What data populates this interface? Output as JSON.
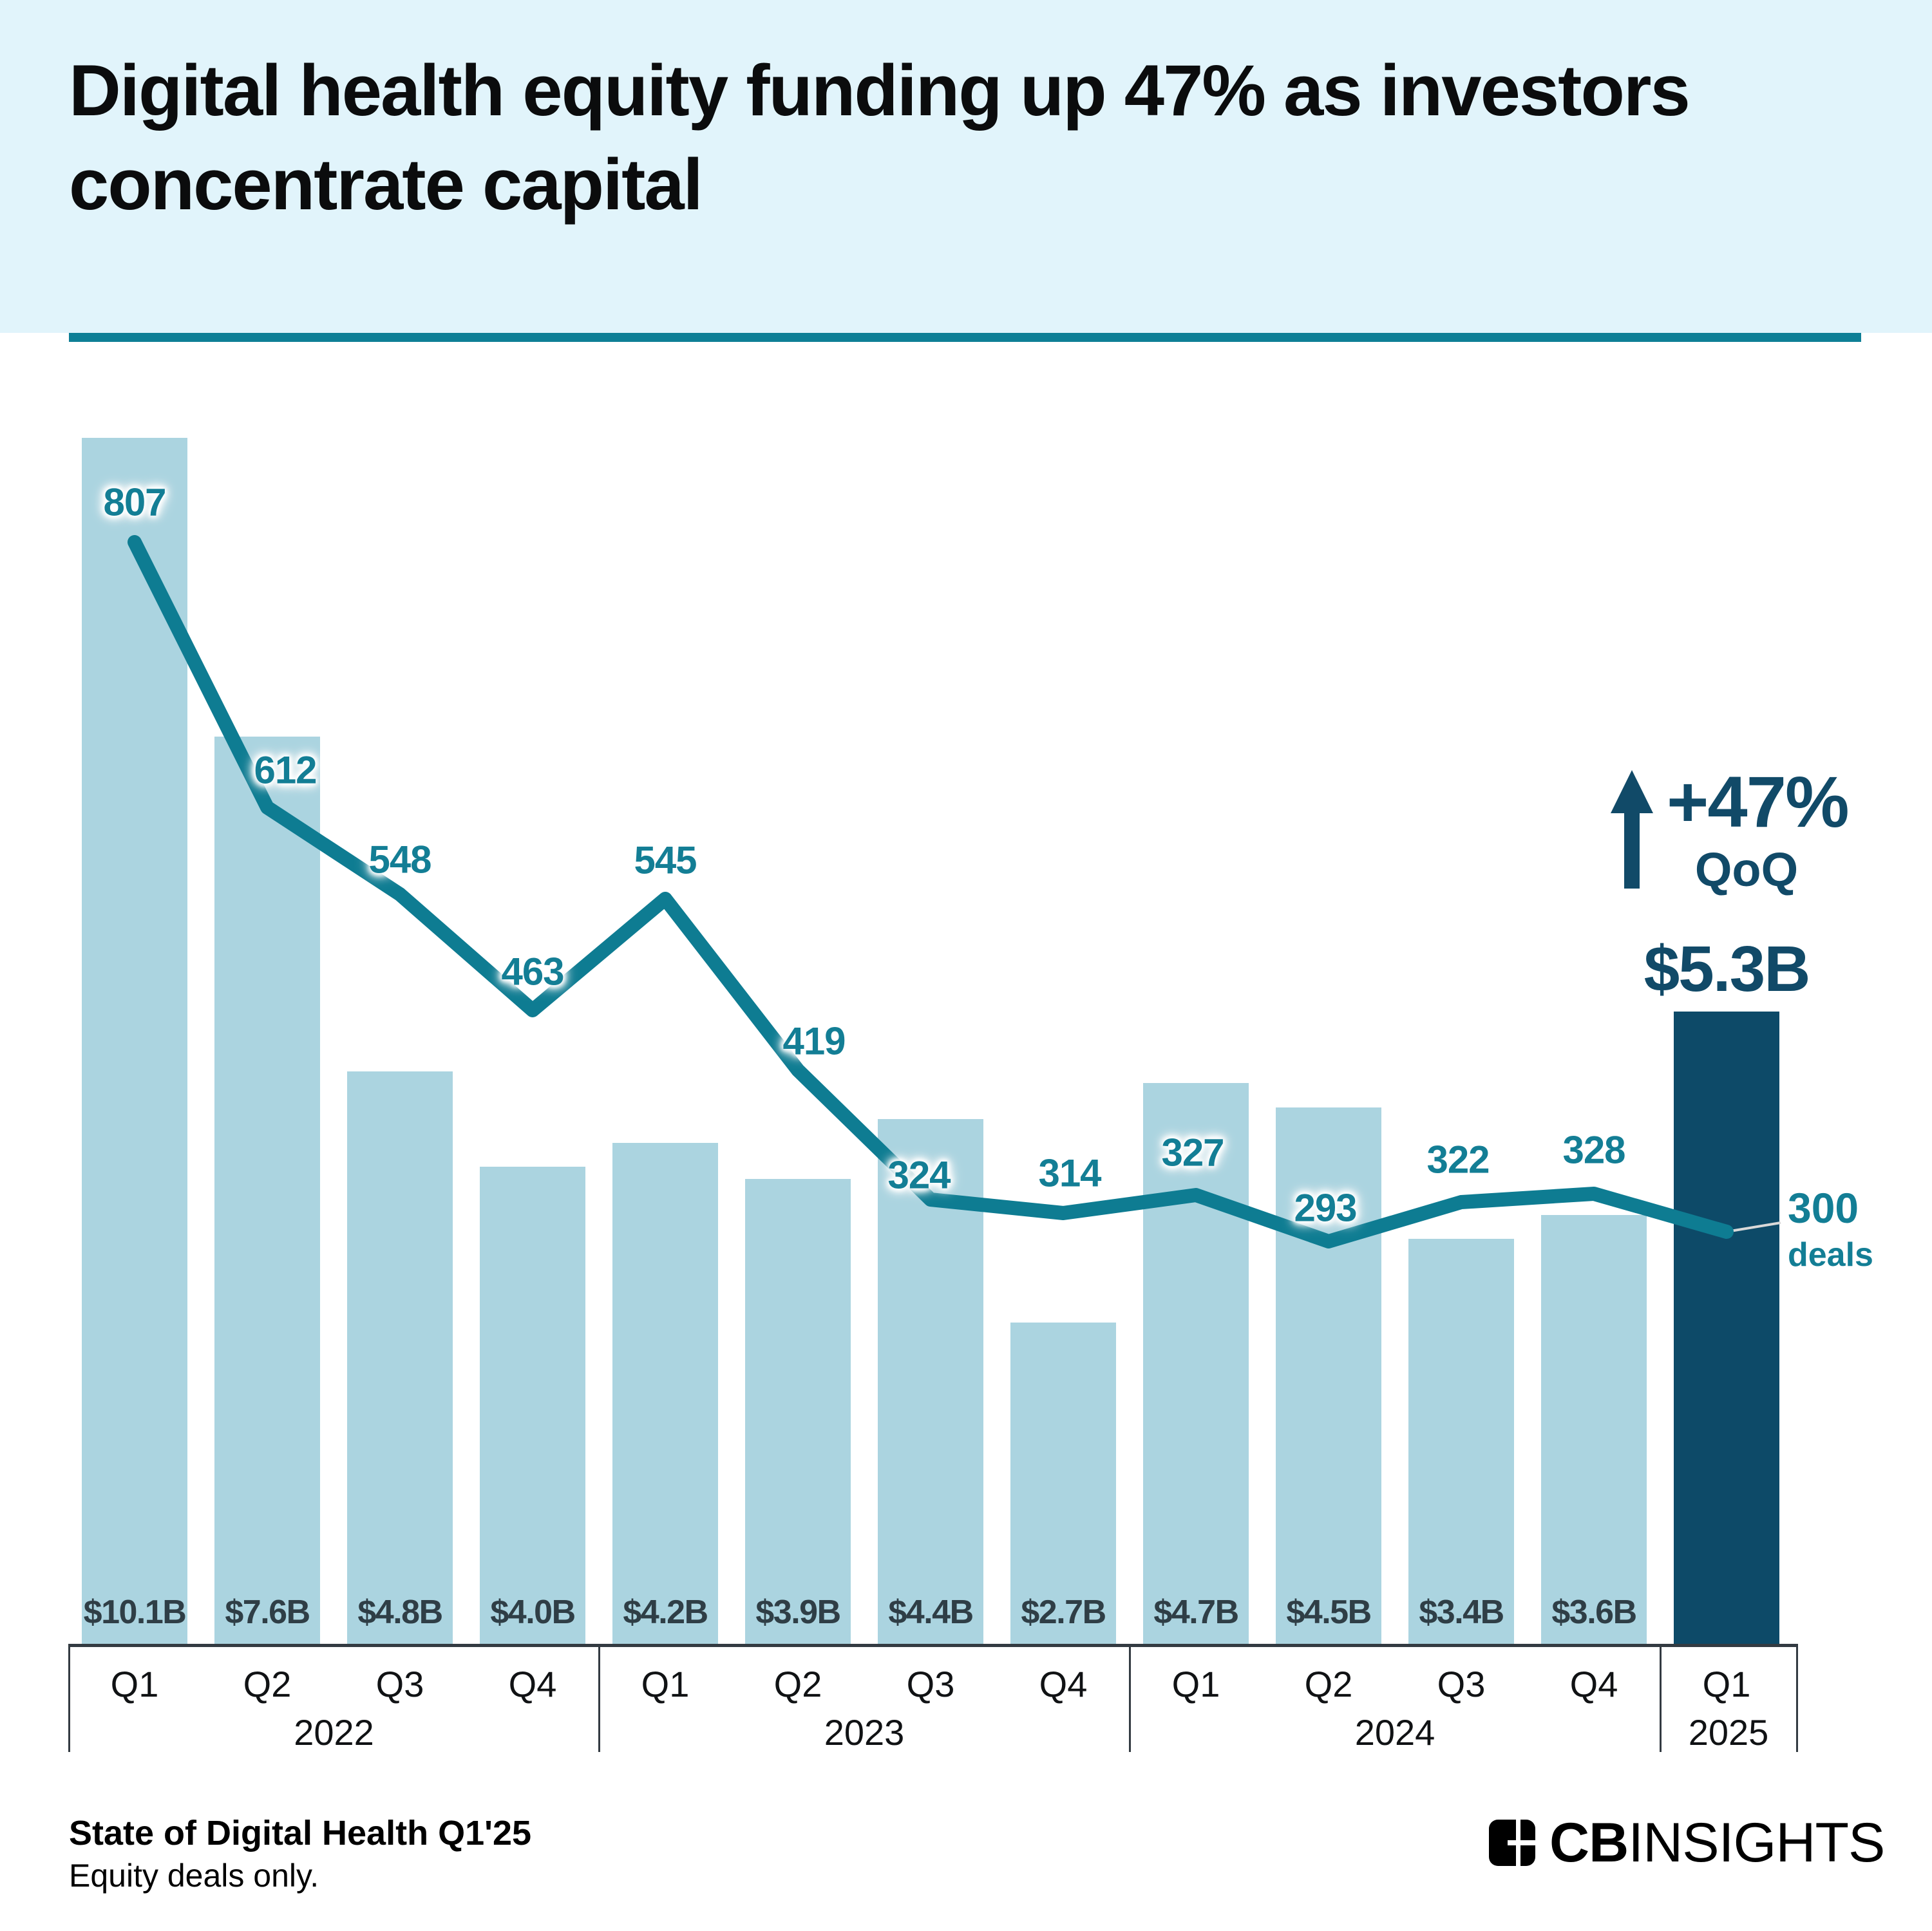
{
  "header": {
    "title": "Digital health equity funding up 47% as investors concentrate capital"
  },
  "chart_data": {
    "type": "bar+line",
    "title": "Digital health equity funding up 47% as investors concentrate capital",
    "quarters": [
      "Q1",
      "Q2",
      "Q3",
      "Q4",
      "Q1",
      "Q2",
      "Q3",
      "Q4",
      "Q1",
      "Q2",
      "Q3",
      "Q4",
      "Q1"
    ],
    "year_groups": [
      {
        "label": "2022",
        "span": 4
      },
      {
        "label": "2023",
        "span": 4
      },
      {
        "label": "2024",
        "span": 4
      },
      {
        "label": "2025",
        "span": 1
      }
    ],
    "series": [
      {
        "name": "Equity funding",
        "unit": "USD billions",
        "values": [
          10.1,
          7.6,
          4.8,
          4.0,
          4.2,
          3.9,
          4.4,
          2.7,
          4.7,
          4.5,
          3.4,
          3.6,
          5.3
        ],
        "labels": [
          "$10.1B",
          "$7.6B",
          "$4.8B",
          "$4.0B",
          "$4.2B",
          "$3.9B",
          "$4.4B",
          "$2.7B",
          "$4.7B",
          "$4.5B",
          "$3.4B",
          "$3.6B",
          "$5.3B"
        ]
      },
      {
        "name": "Deals",
        "unit": "deals",
        "values": [
          807,
          612,
          548,
          463,
          545,
          419,
          324,
          314,
          327,
          293,
          322,
          328,
          300
        ]
      }
    ],
    "highlight_index": 12,
    "highlight_label": "$5.3B",
    "annotation": {
      "icon": "up-arrow",
      "change": "+47%",
      "period": "QoQ"
    },
    "endpoint_label": {
      "value": "300",
      "unit": "deals"
    },
    "grid": false,
    "legend_position": "none",
    "colors": {
      "bar": "#abd4e0",
      "bar_highlight": "#0d4a68",
      "line": "#0e7c92",
      "deals_label": "#137e95",
      "funding_label": "#2f3e46",
      "navy": "#114a68",
      "axis": "#333b42",
      "header_bg": "#e1f4fb",
      "rule": "#0e7f96",
      "connector": "#d9d9d9"
    }
  },
  "footer": {
    "source_bold": "State of Digital Health Q1'25",
    "note": "Equity deals only.",
    "brand_bold": "CB",
    "brand_light": "INSIGHTS"
  }
}
